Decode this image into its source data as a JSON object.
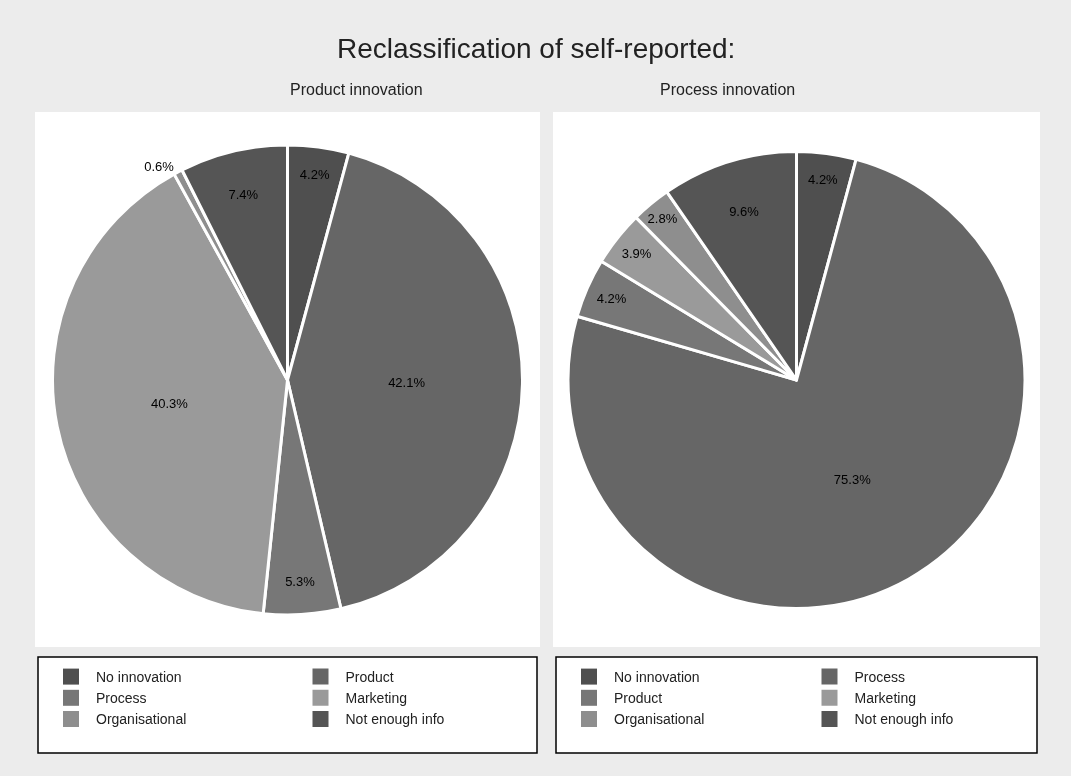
{
  "chart_data": [
    {
      "type": "pie",
      "title": "Reclassification of self-reported:",
      "subtitle": "Product innovation",
      "categories": [
        "No innovation",
        "Product",
        "Process",
        "Marketing",
        "Organisational",
        "Not enough info"
      ],
      "values": [
        4.2,
        42.1,
        5.3,
        40.3,
        0.6,
        7.4
      ],
      "value_labels": [
        "4.2%",
        "42.1%",
        "5.3%",
        "40.3%",
        "0.6%",
        "7.4%"
      ],
      "colors": [
        "#4f4f4f",
        "#666666",
        "#777777",
        "#9a9a9a",
        "#8e8e8e",
        "#555555"
      ],
      "legend": "bottom"
    },
    {
      "type": "pie",
      "subtitle": "Process innovation",
      "categories": [
        "No innovation",
        "Process",
        "Product",
        "Marketing",
        "Organisational",
        "Not enough info"
      ],
      "values": [
        4.2,
        75.3,
        4.2,
        3.9,
        2.8,
        9.6
      ],
      "value_labels": [
        "4.2%",
        "75.3%",
        "4.2%",
        "3.9%",
        "2.8%",
        "9.6%"
      ],
      "colors": [
        "#4f4f4f",
        "#666666",
        "#777777",
        "#9a9a9a",
        "#8e8e8e",
        "#555555"
      ],
      "legend": "bottom"
    }
  ]
}
